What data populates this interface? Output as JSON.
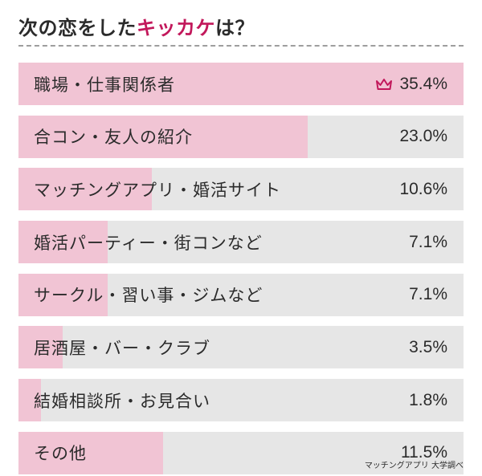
{
  "title": {
    "prefix": "次の恋をした",
    "accent": "キッカケ",
    "suffix": "は？"
  },
  "colors": {
    "bar_fill": "#f1c4d4",
    "bar_track": "#e6e6e6",
    "accent": "#c2185b",
    "text": "#2b2b2b"
  },
  "top_item_icon": "crown-icon",
  "chart_data": {
    "type": "bar",
    "orientation": "horizontal",
    "max_value": 35.4,
    "rows": [
      {
        "label": "職場・仕事関係者",
        "value": 35.4,
        "value_text": "35.4%"
      },
      {
        "label": "合コン・友人の紹介",
        "value": 23.0,
        "value_text": "23.0%"
      },
      {
        "label": "マッチングアプリ・婚活サイト",
        "value": 10.6,
        "value_text": "10.6%"
      },
      {
        "label": "婚活パーティー・街コンなど",
        "value": 7.1,
        "value_text": "7.1%"
      },
      {
        "label": "サークル・習い事・ジムなど",
        "value": 7.1,
        "value_text": "7.1%"
      },
      {
        "label": "居酒屋・バー・クラブ",
        "value": 3.5,
        "value_text": "3.5%"
      },
      {
        "label": "結婚相談所・お見合い",
        "value": 1.8,
        "value_text": "1.8%"
      },
      {
        "label": "その他",
        "value": 11.5,
        "value_text": "11.5%"
      }
    ]
  },
  "source": "マッチングアプリ 大学調べ"
}
